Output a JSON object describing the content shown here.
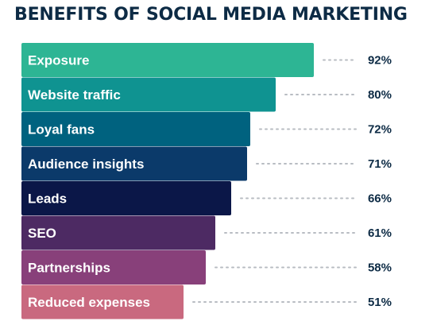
{
  "title": "BENEFITS OF SOCIAL MEDIA MARKETING",
  "chart_data": {
    "type": "bar",
    "orientation": "horizontal",
    "title": "BENEFITS OF SOCIAL MEDIA MARKETING",
    "categories": [
      "Exposure",
      "Website traffic",
      "Loyal fans",
      "Audience insights",
      "Leads",
      "SEO",
      "Partnerships",
      "Reduced expenses"
    ],
    "values": [
      92,
      80,
      72,
      71,
      66,
      61,
      58,
      51
    ],
    "value_labels": [
      "92%",
      "80%",
      "72%",
      "71%",
      "66%",
      "61%",
      "58%",
      "51%"
    ],
    "colors": [
      "#2db594",
      "#0f9391",
      "#00627f",
      "#0b3a6a",
      "#0b1748",
      "#4d2a63",
      "#88407a",
      "#c9697f"
    ],
    "xlabel": "",
    "ylabel": "",
    "xlim": [
      0,
      100
    ],
    "grid": false,
    "legend": "none"
  }
}
